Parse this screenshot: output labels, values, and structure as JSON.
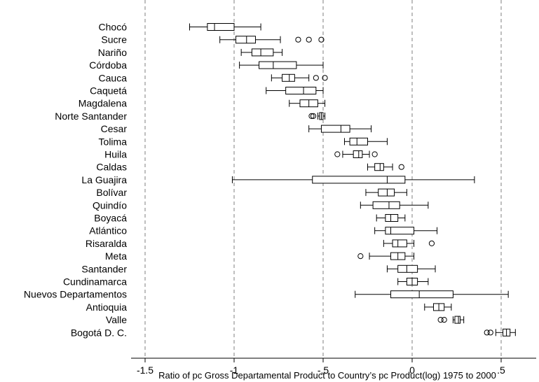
{
  "chart_data": {
    "type": "boxplot",
    "orientation": "horizontal",
    "xlabel": "Ratio of pc Gross Departamental Product to Country’s pc Product(log) 1975 to 2000",
    "xlim": [
      -1.62,
      0.68
    ],
    "xticks": [
      -1.5,
      -1,
      -0.5,
      0,
      0.5
    ],
    "xtick_labels": [
      "-1.5",
      "-1",
      "-.5",
      "0",
      ".5"
    ],
    "grid": "vertical dashed at ticks",
    "categories": [
      {
        "label": "Chocó",
        "whisker_low": -1.25,
        "q1": -1.15,
        "median": -1.11,
        "q3": -1.0,
        "whisker_high": -0.85,
        "outliers": []
      },
      {
        "label": "Sucre",
        "whisker_low": -1.08,
        "q1": -0.99,
        "median": -0.93,
        "q3": -0.88,
        "whisker_high": -0.74,
        "outliers": [
          -0.64,
          -0.58,
          -0.51
        ]
      },
      {
        "label": "Nariño",
        "whisker_low": -0.96,
        "q1": -0.9,
        "median": -0.85,
        "q3": -0.78,
        "whisker_high": -0.73,
        "outliers": []
      },
      {
        "label": "Córdoba",
        "whisker_low": -0.97,
        "q1": -0.86,
        "median": -0.78,
        "q3": -0.65,
        "whisker_high": -0.5,
        "outliers": []
      },
      {
        "label": "Cauca",
        "whisker_low": -0.79,
        "q1": -0.73,
        "median": -0.69,
        "q3": -0.66,
        "whisker_high": -0.58,
        "outliers": [
          -0.54,
          -0.49
        ]
      },
      {
        "label": "Caquetá",
        "whisker_low": -0.82,
        "q1": -0.71,
        "median": -0.61,
        "q3": -0.54,
        "whisker_high": -0.5,
        "outliers": []
      },
      {
        "label": "Magdalena",
        "whisker_low": -0.69,
        "q1": -0.63,
        "median": -0.58,
        "q3": -0.53,
        "whisker_high": -0.49,
        "outliers": []
      },
      {
        "label": "Norte Santander",
        "whisker_low": -0.53,
        "q1": -0.52,
        "median": -0.51,
        "q3": -0.5,
        "whisker_high": -0.49,
        "outliers": [
          -0.565,
          -0.555
        ]
      },
      {
        "label": "Cesar",
        "whisker_low": -0.58,
        "q1": -0.51,
        "median": -0.4,
        "q3": -0.35,
        "whisker_high": -0.23,
        "outliers": []
      },
      {
        "label": "Tolima",
        "whisker_low": -0.38,
        "q1": -0.35,
        "median": -0.31,
        "q3": -0.25,
        "whisker_high": -0.14,
        "outliers": []
      },
      {
        "label": "Huila",
        "whisker_low": -0.39,
        "q1": -0.33,
        "median": -0.3,
        "q3": -0.28,
        "whisker_high": -0.24,
        "outliers": [
          -0.42,
          -0.21
        ]
      },
      {
        "label": "Caldas",
        "whisker_low": -0.25,
        "q1": -0.21,
        "median": -0.18,
        "q3": -0.16,
        "whisker_high": -0.11,
        "outliers": [
          -0.06
        ]
      },
      {
        "label": "La Guajira",
        "whisker_low": -1.01,
        "q1": -0.56,
        "median": -0.14,
        "q3": -0.04,
        "whisker_high": 0.35,
        "outliers": []
      },
      {
        "label": "Bolívar",
        "whisker_low": -0.26,
        "q1": -0.19,
        "median": -0.14,
        "q3": -0.1,
        "whisker_high": -0.03,
        "outliers": []
      },
      {
        "label": "Quindío",
        "whisker_low": -0.29,
        "q1": -0.22,
        "median": -0.13,
        "q3": -0.07,
        "whisker_high": 0.09,
        "outliers": []
      },
      {
        "label": "Boyacá",
        "whisker_low": -0.2,
        "q1": -0.15,
        "median": -0.12,
        "q3": -0.08,
        "whisker_high": -0.04,
        "outliers": []
      },
      {
        "label": "Atlántico",
        "whisker_low": -0.21,
        "q1": -0.15,
        "median": -0.12,
        "q3": 0.01,
        "whisker_high": 0.14,
        "outliers": []
      },
      {
        "label": "Risaralda",
        "whisker_low": -0.16,
        "q1": -0.11,
        "median": -0.08,
        "q3": -0.03,
        "whisker_high": 0.01,
        "outliers": [
          0.11
        ]
      },
      {
        "label": "Meta",
        "whisker_low": -0.24,
        "q1": -0.12,
        "median": -0.08,
        "q3": -0.04,
        "whisker_high": 0.01,
        "outliers": [
          -0.29
        ]
      },
      {
        "label": "Santander",
        "whisker_low": -0.14,
        "q1": -0.08,
        "median": -0.03,
        "q3": 0.03,
        "whisker_high": 0.13,
        "outliers": []
      },
      {
        "label": "Cundinamarca",
        "whisker_low": -0.08,
        "q1": -0.03,
        "median": 0.0,
        "q3": 0.03,
        "whisker_high": 0.09,
        "outliers": []
      },
      {
        "label": "Nuevos Departamentos",
        "whisker_low": -0.32,
        "q1": -0.12,
        "median": 0.04,
        "q3": 0.23,
        "whisker_high": 0.54,
        "outliers": []
      },
      {
        "label": "Antioquia",
        "whisker_low": 0.07,
        "q1": 0.12,
        "median": 0.15,
        "q3": 0.18,
        "whisker_high": 0.22,
        "outliers": []
      },
      {
        "label": "Valle",
        "whisker_low": 0.23,
        "q1": 0.24,
        "median": 0.26,
        "q3": 0.27,
        "whisker_high": 0.29,
        "outliers": [
          0.16,
          0.18
        ]
      },
      {
        "label": "Bogotá D. C.",
        "whisker_low": 0.47,
        "q1": 0.51,
        "median": 0.53,
        "q3": 0.55,
        "whisker_high": 0.58,
        "outliers": [
          0.42,
          0.44
        ]
      }
    ]
  }
}
